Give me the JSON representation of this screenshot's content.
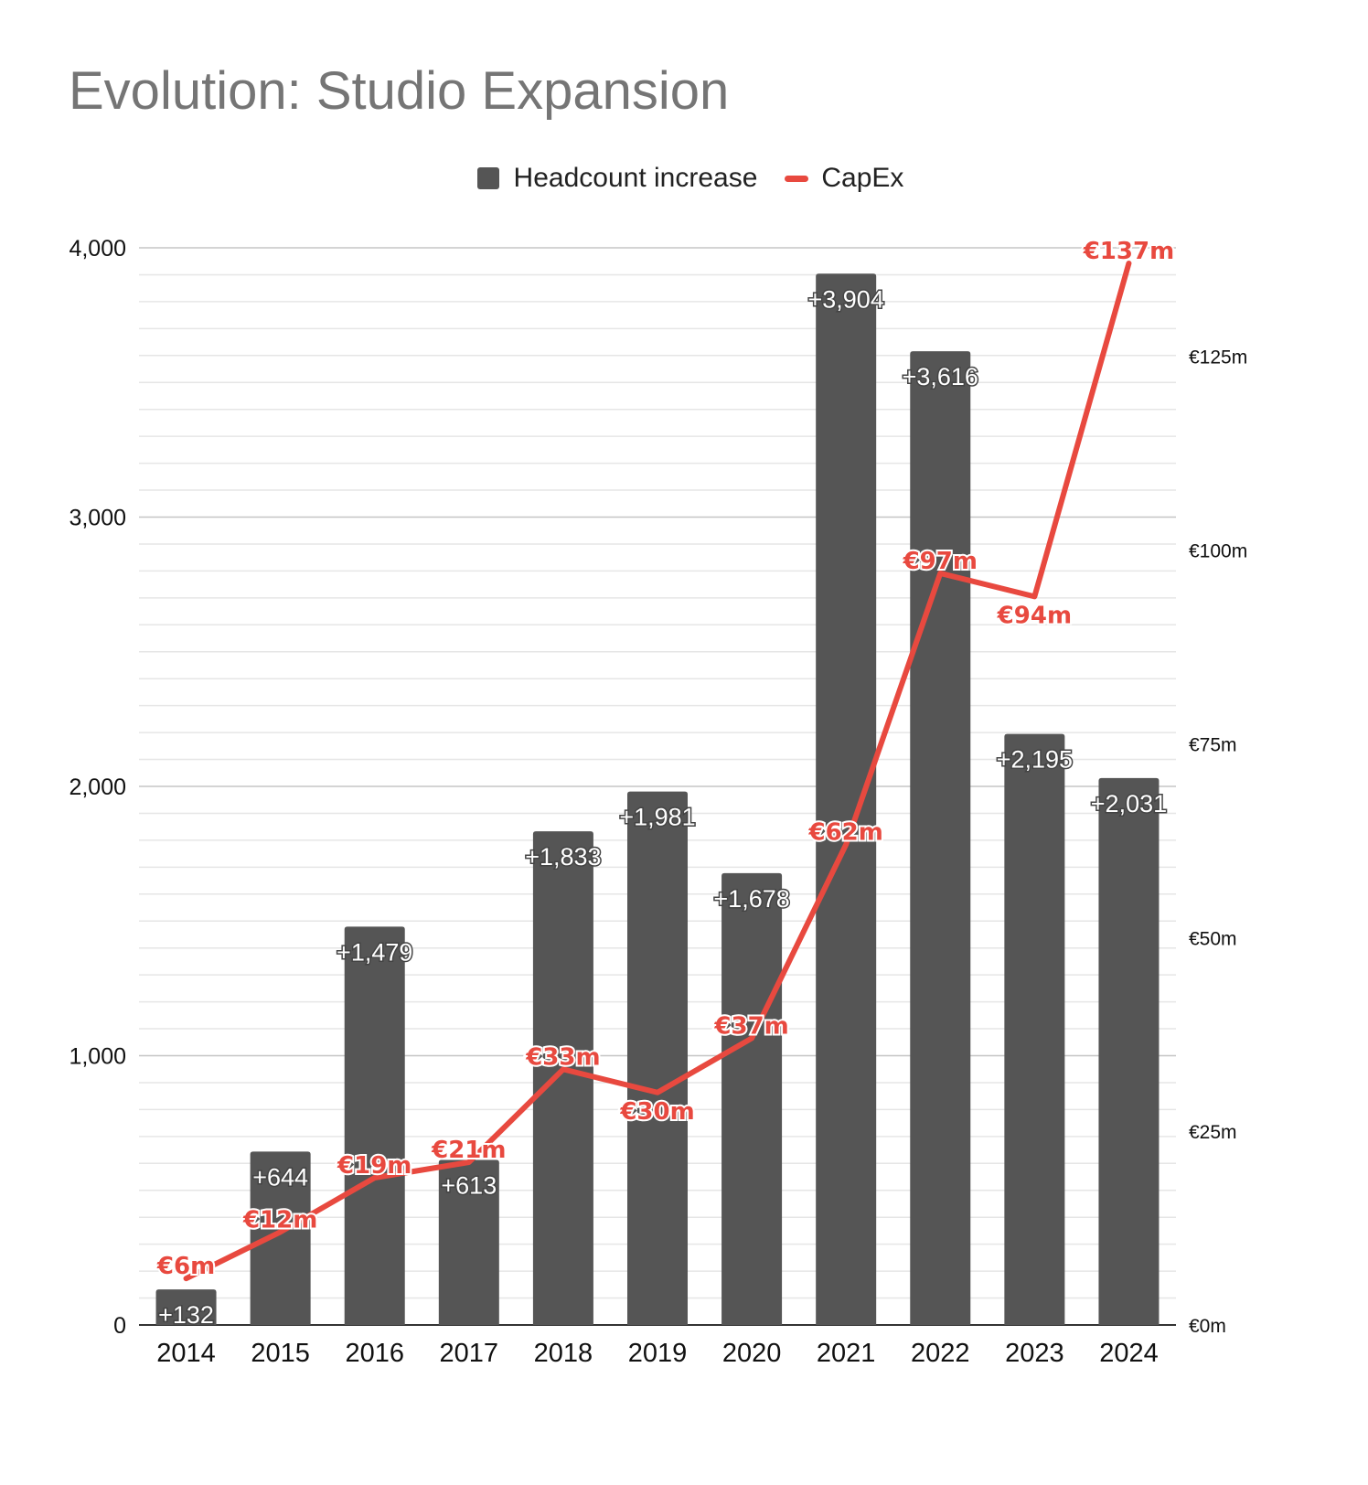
{
  "colors": {
    "bar": "#555555",
    "line": "#e8493f",
    "title": "#757575",
    "grid_major": "#c6c6c6",
    "grid_minor": "#e6e6e6"
  },
  "chart_data": {
    "type": "bar",
    "title": "Evolution: Studio Expansion",
    "legend": {
      "placement": "top-center",
      "entries": [
        "Headcount increase",
        "CapEx"
      ]
    },
    "categories": [
      "2014",
      "2015",
      "2016",
      "2017",
      "2018",
      "2019",
      "2020",
      "2021",
      "2022",
      "2023",
      "2024"
    ],
    "series": [
      {
        "name": "Headcount increase",
        "type": "bar",
        "axis": "left",
        "values": [
          132,
          644,
          1479,
          613,
          1833,
          1981,
          1678,
          3904,
          3616,
          2195,
          2031
        ],
        "labels": [
          "+132",
          "+644",
          "+1,479",
          "+613",
          "+1,833",
          "+1,981",
          "+1,678",
          "+3,904",
          "+3,616",
          "+2,195",
          "+2,031"
        ]
      },
      {
        "name": "CapEx",
        "type": "line",
        "axis": "right",
        "values": [
          6,
          12,
          19,
          21,
          33,
          30,
          37,
          62,
          97,
          94,
          137
        ],
        "labels": [
          "€6m",
          "€12m",
          "€19m",
          "€21m",
          "€33m",
          "€30m",
          "€37m",
          "€62m",
          "€97m",
          "€94m",
          "€137m"
        ]
      }
    ],
    "y_left": {
      "ylim": [
        0,
        4000
      ],
      "ticks": [
        0,
        1000,
        2000,
        3000,
        4000
      ],
      "tick_labels": [
        "0",
        "1,000",
        "2,000",
        "3,000",
        "4,000"
      ]
    },
    "y_right": {
      "ylim": [
        0,
        139
      ],
      "ticks": [
        0,
        25,
        50,
        75,
        100,
        125
      ],
      "tick_labels": [
        "€0m",
        "€25m",
        "€50m",
        "€75m",
        "€100m",
        "€125m"
      ]
    },
    "grid": true,
    "minor_grid": true
  }
}
